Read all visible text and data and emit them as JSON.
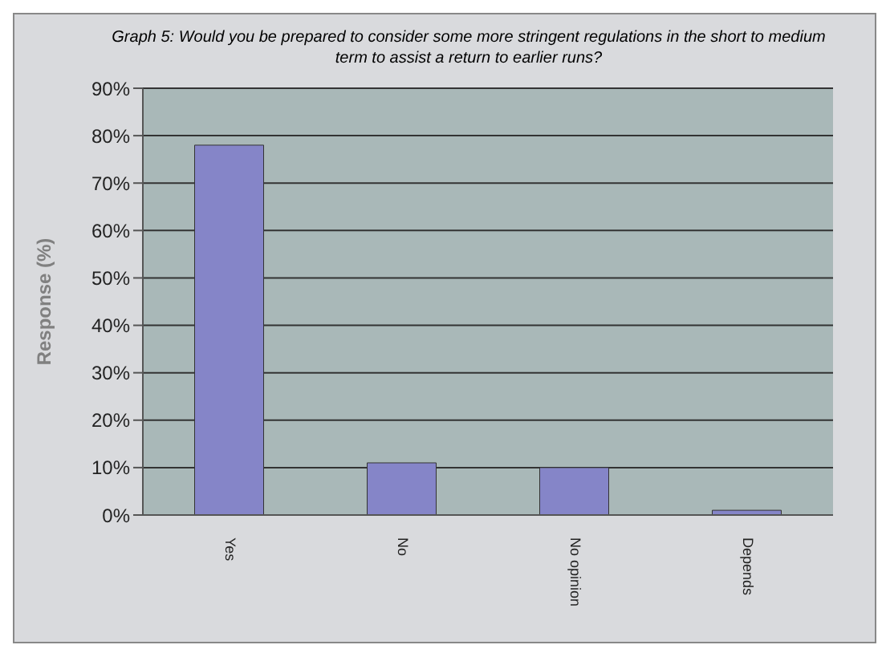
{
  "chart_data": {
    "type": "bar",
    "title": "Graph 5: Would you be prepared to consider some more stringent regulations in the short to medium term to assist a return to earlier runs?",
    "categories": [
      "Yes",
      "No",
      "No opinion",
      "Depends"
    ],
    "values": [
      78,
      11,
      10,
      1
    ],
    "color": "#8585c8",
    "ylabel": "Response (%)",
    "ylim": [
      0,
      90
    ],
    "yticks": [
      {
        "value": 0,
        "label": "0%"
      },
      {
        "value": 10,
        "label": "10%"
      },
      {
        "value": 20,
        "label": "20%"
      },
      {
        "value": 30,
        "label": "30%"
      },
      {
        "value": 40,
        "label": "40%"
      },
      {
        "value": 50,
        "label": "50%"
      },
      {
        "value": 60,
        "label": "60%"
      },
      {
        "value": 70,
        "label": "70%"
      },
      {
        "value": 80,
        "label": "80%"
      },
      {
        "value": 90,
        "label": "90%"
      }
    ],
    "grid": "y",
    "legend": false
  }
}
